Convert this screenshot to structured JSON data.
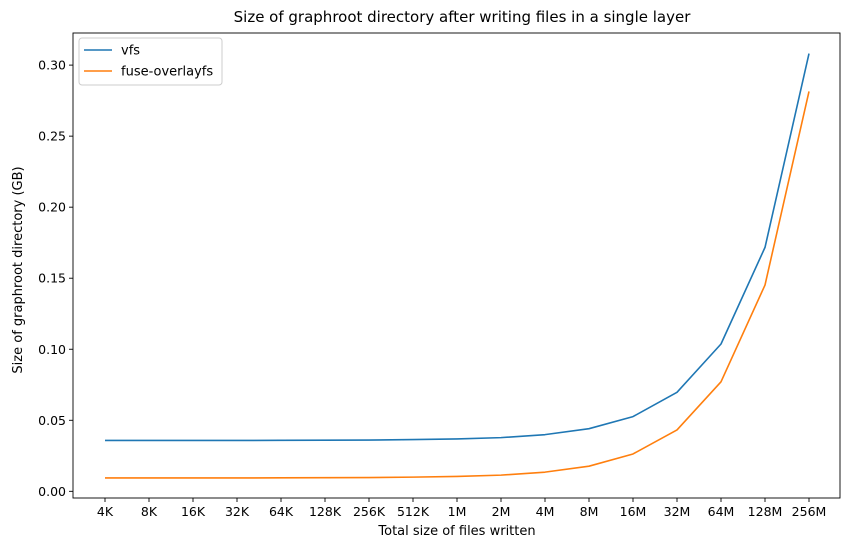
{
  "chart_data": {
    "type": "line",
    "title": "Size of graphroot directory after writing files in a single layer",
    "xlabel": "Total size of files written",
    "ylabel": "Size of graphroot directory (GB)",
    "categories": [
      "4K",
      "8K",
      "16K",
      "32K",
      "64K",
      "128K",
      "256K",
      "512K",
      "1M",
      "2M",
      "4M",
      "8M",
      "16M",
      "32M",
      "64M",
      "128M",
      "256M"
    ],
    "ylim": [
      -0.0047,
      0.3226
    ],
    "yticks": [
      0.0,
      0.05,
      0.1,
      0.15,
      0.2,
      0.25,
      0.3
    ],
    "ytick_labels": [
      "0.00",
      "0.05",
      "0.10",
      "0.15",
      "0.20",
      "0.25",
      "0.30"
    ],
    "grid": false,
    "legend_position": "top-left",
    "series": [
      {
        "name": "vfs",
        "color": "#1f77b4",
        "values": [
          0.0358,
          0.0358,
          0.0358,
          0.0358,
          0.0359,
          0.036,
          0.0361,
          0.0364,
          0.0369,
          0.0378,
          0.0399,
          0.0441,
          0.0526,
          0.0697,
          0.1037,
          0.1717,
          0.3081
        ]
      },
      {
        "name": "fuse-overlayfs",
        "color": "#ff7f0e",
        "values": [
          0.0094,
          0.0094,
          0.0094,
          0.0094,
          0.0095,
          0.0096,
          0.0097,
          0.01,
          0.0105,
          0.0114,
          0.0135,
          0.0177,
          0.0263,
          0.0432,
          0.0771,
          0.1452,
          0.2815
        ]
      }
    ]
  }
}
